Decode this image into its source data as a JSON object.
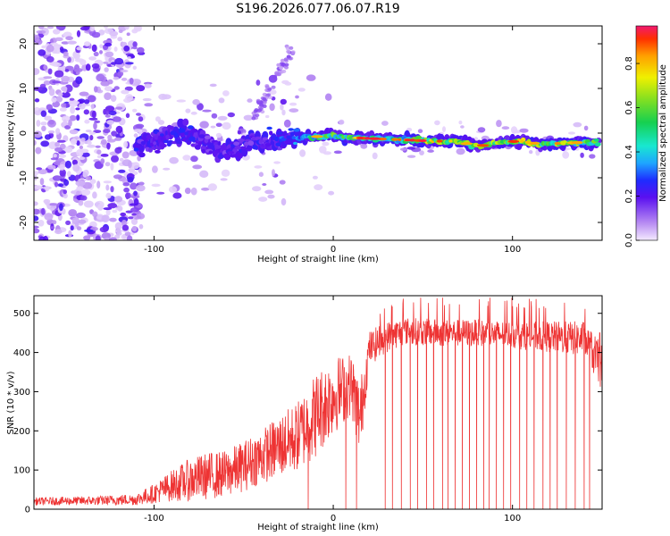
{
  "title": "S196.2026.077.06.07.R19",
  "chart_data": [
    {
      "type": "heatmap",
      "name": "spectrogram",
      "xlabel": "Height of straight line (km)",
      "ylabel": "Frequency (Hz)",
      "xlim": [
        -167,
        150
      ],
      "ylim": [
        -24,
        24
      ],
      "xticks": [
        -100,
        0,
        100
      ],
      "yticks": [
        20,
        10,
        0,
        -10,
        -20
      ],
      "colorbar": {
        "label": "Normalized spectral amplitude",
        "range": [
          0,
          0.97
        ],
        "ticks": [
          0.0,
          0.2,
          0.4,
          0.6,
          0.8
        ],
        "tick_labels": [
          "0.0",
          "0.2",
          "0.4",
          "0.6",
          "0.8"
        ]
      },
      "ridge": [
        {
          "x": -108,
          "f": -2.5,
          "a": 0.28
        },
        {
          "x": -96,
          "f": -1.0,
          "a": 0.25
        },
        {
          "x": -84,
          "f": 0.5,
          "a": 0.3
        },
        {
          "x": -72,
          "f": -2.0,
          "a": 0.22
        },
        {
          "x": -60,
          "f": -4.0,
          "a": 0.25
        },
        {
          "x": -45,
          "f": -2.0,
          "a": 0.25
        },
        {
          "x": -30,
          "f": -1.5,
          "a": 0.3
        },
        {
          "x": -20,
          "f": -1.0,
          "a": 0.4
        },
        {
          "x": -10,
          "f": -0.8,
          "a": 0.6
        },
        {
          "x": 0,
          "f": -0.5,
          "a": 0.65
        },
        {
          "x": 10,
          "f": -1.0,
          "a": 0.6
        },
        {
          "x": 20,
          "f": -1.2,
          "a": 0.5
        },
        {
          "x": 40,
          "f": -1.5,
          "a": 0.55
        },
        {
          "x": 55,
          "f": -1.8,
          "a": 0.85
        },
        {
          "x": 70,
          "f": -1.8,
          "a": 0.7
        },
        {
          "x": 80,
          "f": -3.0,
          "a": 0.75
        },
        {
          "x": 95,
          "f": -2.0,
          "a": 0.7
        },
        {
          "x": 105,
          "f": -1.8,
          "a": 0.8
        },
        {
          "x": 115,
          "f": -2.5,
          "a": 0.75
        },
        {
          "x": 130,
          "f": -2.2,
          "a": 0.7
        },
        {
          "x": 145,
          "f": -2.0,
          "a": 0.65
        }
      ]
    },
    {
      "type": "line",
      "name": "snr",
      "xlabel": "Height of straight line (km)",
      "ylabel": "SNR (10 * v/v)",
      "xlim": [
        -167,
        150
      ],
      "ylim": [
        0,
        545
      ],
      "xticks": [
        -100,
        0,
        100
      ],
      "yticks": [
        0,
        100,
        200,
        300,
        400,
        500
      ],
      "color": "#ee3333",
      "envelope": {
        "x": [
          -167,
          -130,
          -110,
          -100,
          -90,
          -80,
          -70,
          -60,
          -50,
          -40,
          -30,
          -20,
          -10,
          0,
          10,
          15,
          20,
          30,
          40,
          60,
          80,
          100,
          120,
          140,
          150
        ],
        "mean": [
          20,
          22,
          25,
          40,
          60,
          75,
          85,
          90,
          110,
          135,
          160,
          185,
          240,
          290,
          320,
          230,
          410,
          440,
          455,
          450,
          450,
          445,
          440,
          435,
          360
        ],
        "spread": [
          10,
          12,
          15,
          25,
          40,
          55,
          60,
          60,
          65,
          70,
          80,
          90,
          110,
          100,
          80,
          100,
          45,
          40,
          35,
          35,
          35,
          35,
          40,
          45,
          60
        ]
      },
      "dropouts": [
        -14,
        7,
        13,
        29,
        33,
        38,
        43,
        47,
        52,
        56,
        61,
        64,
        68,
        72,
        76,
        80,
        84,
        87,
        91,
        95,
        99,
        104,
        108,
        112,
        117,
        121,
        125,
        130,
        135,
        140,
        143
      ]
    }
  ]
}
